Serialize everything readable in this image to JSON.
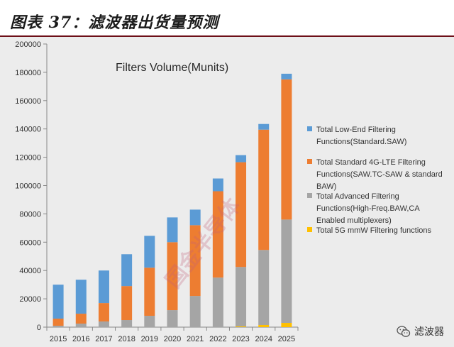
{
  "header": {
    "title": "图表 37：滤波器出货量预测"
  },
  "watermark": "国金半导体",
  "wechat": {
    "label": "滤波器",
    "icon": "wechat-icon"
  },
  "colors": {
    "low_end": "#5b9bd5",
    "standard": "#ed7d31",
    "advanced": "#a5a5a5",
    "mmw": "#ffc000",
    "header_rule": "#6d0f17"
  },
  "chart_data": {
    "type": "bar",
    "stacked": true,
    "title": "Filters Volume(Munits)",
    "xlabel": "",
    "ylabel": "",
    "ylim": [
      0,
      200000
    ],
    "yticks": [
      "0",
      "20000",
      "40000",
      "60000",
      "80000",
      "100000",
      "120000",
      "140000",
      "160000",
      "180000",
      "200000"
    ],
    "grid": false,
    "legend_position": "right",
    "categories": [
      "2015",
      "2016",
      "2017",
      "2018",
      "2019",
      "2020",
      "2021",
      "2022",
      "2023",
      "2024",
      "2025"
    ],
    "series": [
      {
        "name": "Total 5G mmW Filtering functions",
        "color_key": "mmw",
        "values": [
          0,
          0,
          0,
          0,
          0,
          0,
          0,
          0,
          500,
          1500,
          3000
        ]
      },
      {
        "name": "Total Advanced Filtering Functions(High-Freq.BAW,CA Enabled multiplexers)",
        "color_key": "advanced",
        "values": [
          1000,
          2500,
          4000,
          5000,
          8000,
          12000,
          22000,
          35000,
          42000,
          53000,
          73000
        ]
      },
      {
        "name": "Total Standard 4G-LTE Filtering Functions(SAW.TC-SAW & standard BAW)",
        "color_key": "standard",
        "values": [
          5000,
          7000,
          13000,
          24000,
          34000,
          48000,
          50000,
          61000,
          74000,
          85000,
          99000
        ]
      },
      {
        "name": "Total Low-End Filtering Functions(Standard.SAW)",
        "color_key": "low_end",
        "values": [
          24000,
          24000,
          23000,
          22500,
          22500,
          17500,
          11000,
          9000,
          5000,
          4000,
          4000
        ]
      }
    ],
    "legend": [
      {
        "color_key": "low_end",
        "lines": [
          "Total Low-End Filtering",
          "Functions(Standard.SAW)"
        ]
      },
      {
        "color_key": "standard",
        "lines": [
          "Total Standard 4G-LTE Filtering",
          "Functions(SAW.TC-SAW & standard",
          "BAW)"
        ]
      },
      {
        "color_key": "advanced",
        "lines": [
          "Total Advanced Filtering",
          "Functions(High-Freq.BAW,CA",
          "Enabled multiplexers)"
        ]
      },
      {
        "color_key": "mmw",
        "lines": [
          "Total 5G mmW Filtering functions"
        ]
      }
    ]
  }
}
